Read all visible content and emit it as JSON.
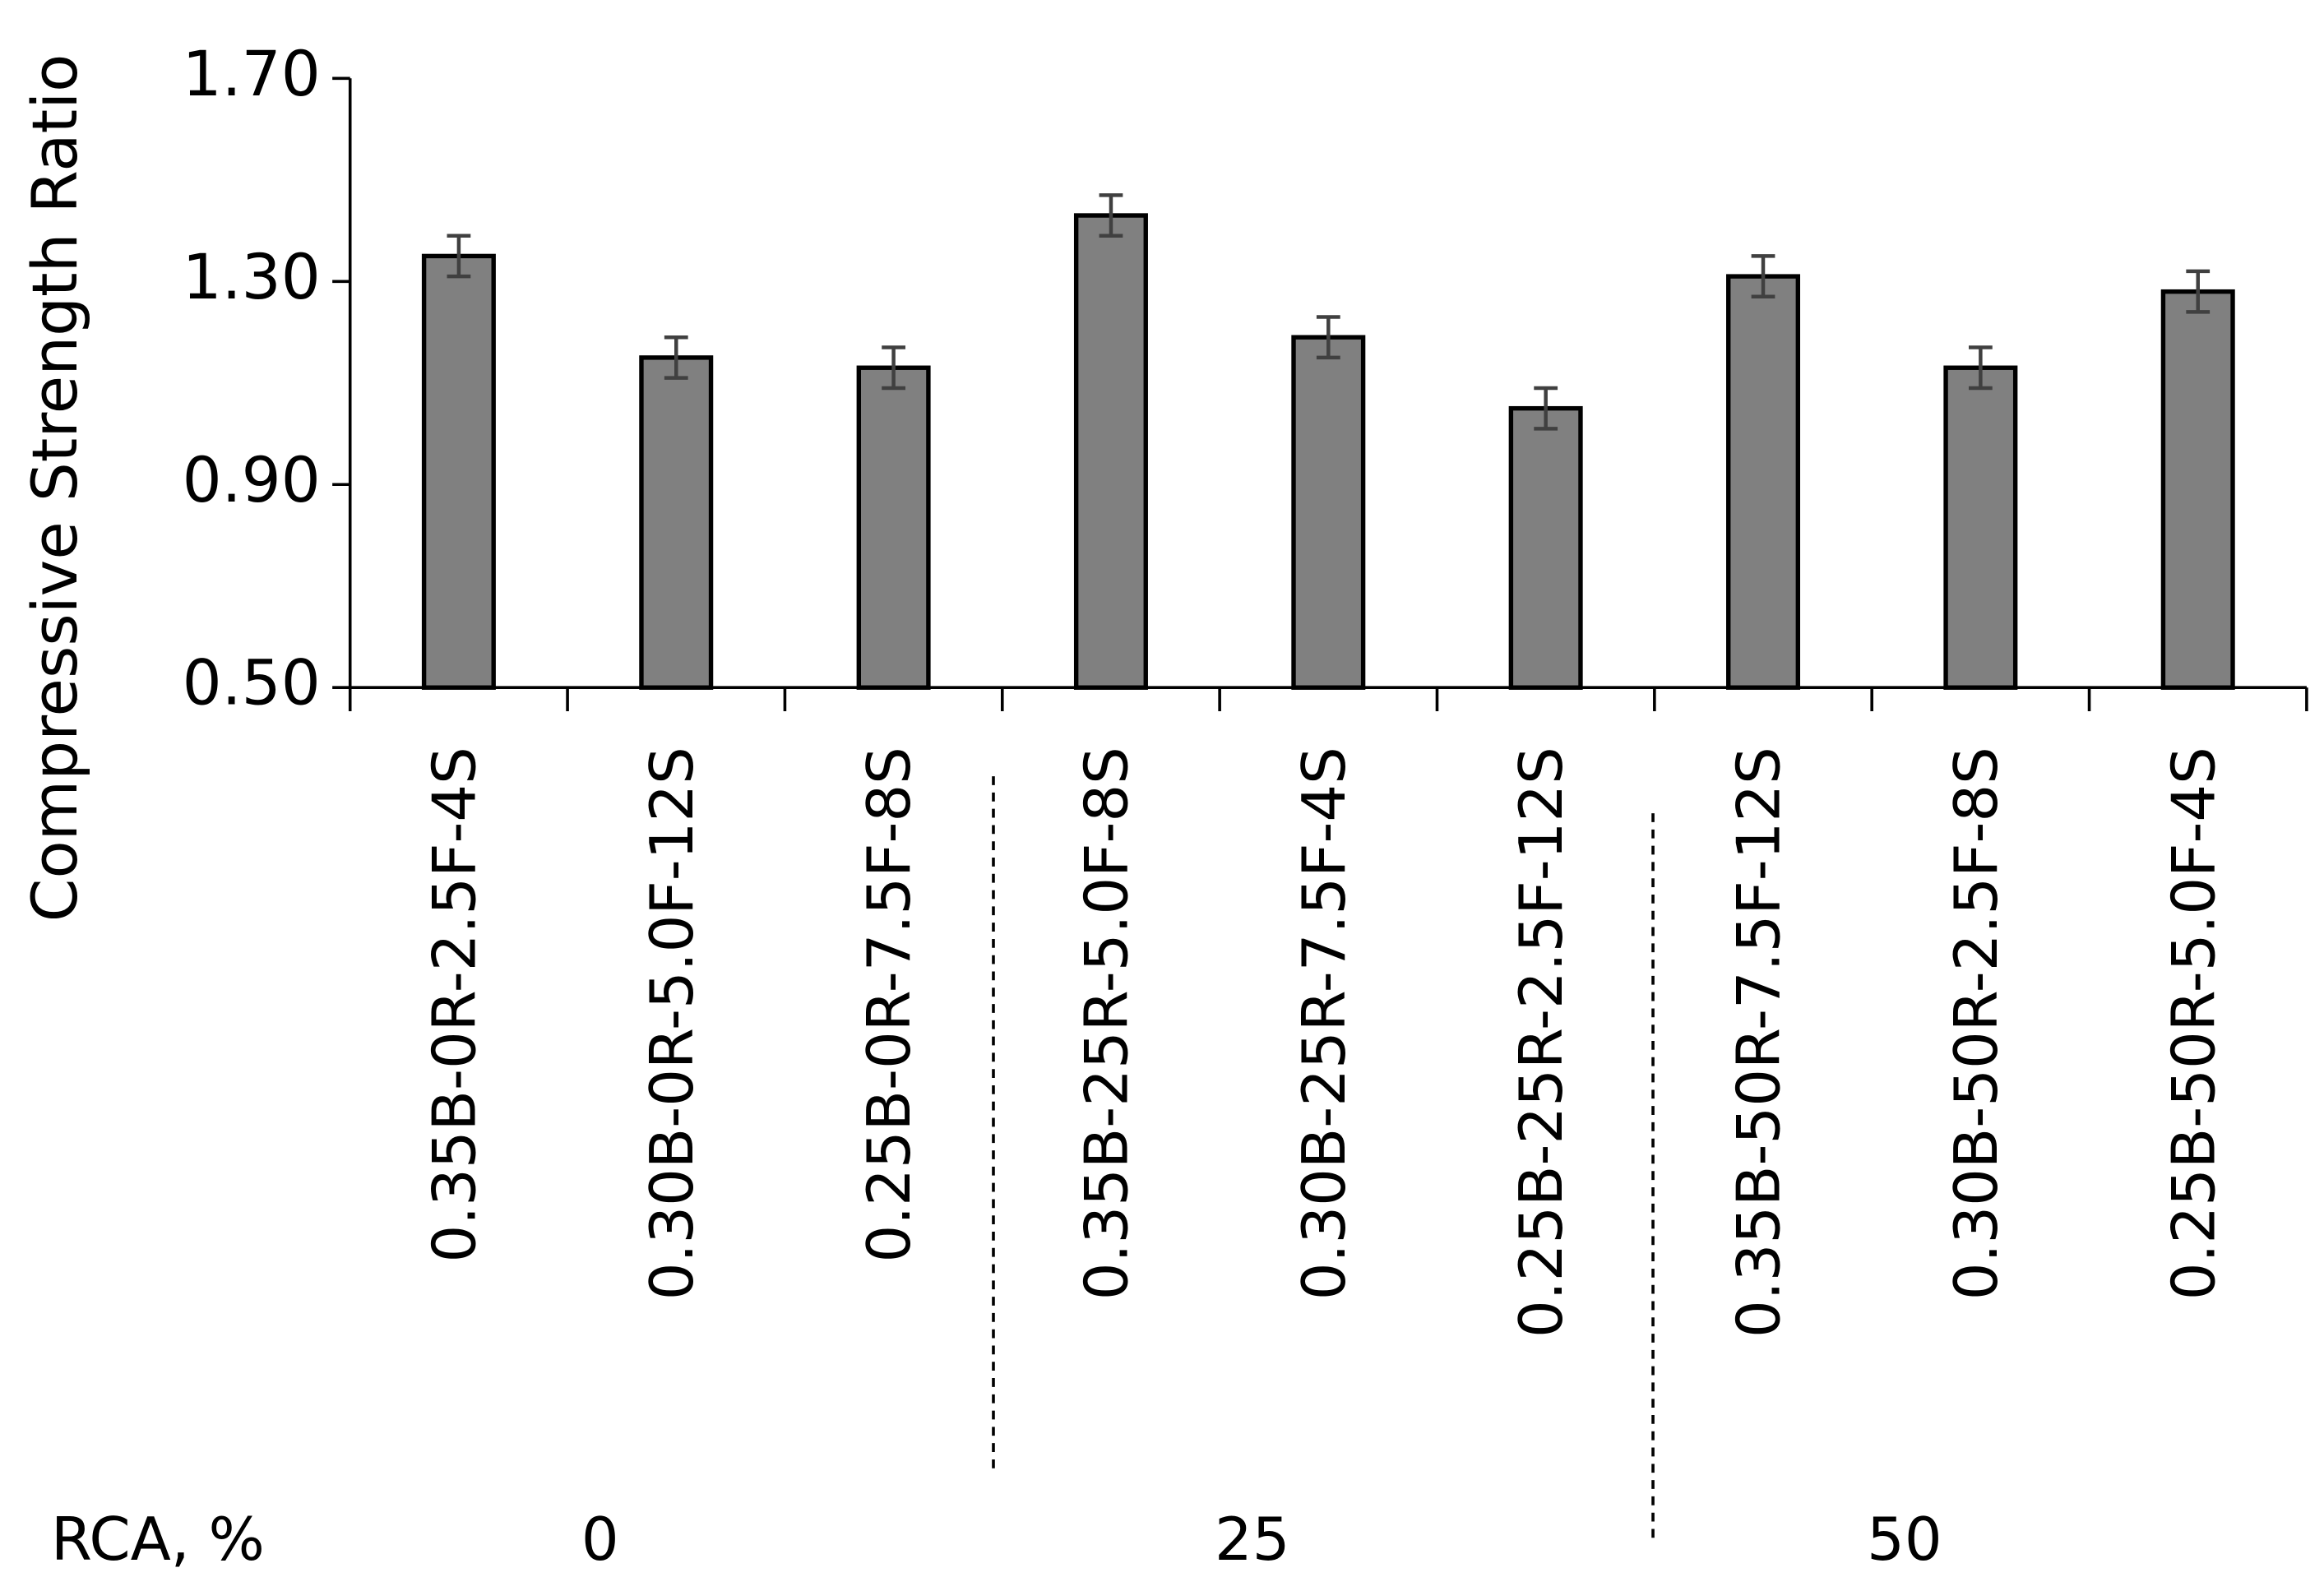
{
  "chart_data": {
    "type": "bar",
    "y_axis_label": "Compressive Strength Ratio",
    "categories": [
      "0.35B-0R-2.5F-4S",
      "0.30B-0R-5.0F-12S",
      "0.25B-0R-7.5F-8S",
      "0.35B-25R-5.0F-8S",
      "0.30B-25R-7.5F-4S",
      "0.25B-25R-2.5F-12S",
      "0.35B-50R-7.5F-12S",
      "0.30B-50R-2.5F-8S",
      "0.25B-50R-5.0F-4S"
    ],
    "values": [
      1.35,
      1.15,
      1.13,
      1.43,
      1.19,
      1.05,
      1.31,
      1.13,
      1.28
    ],
    "errors": [
      0.04,
      0.04,
      0.04,
      0.04,
      0.04,
      0.04,
      0.04,
      0.04,
      0.04
    ],
    "color": "#808080",
    "group_axis_label": "RCA, %",
    "groups": [
      "0",
      "25",
      "50"
    ],
    "ylim": [
      0.5,
      1.7
    ],
    "yticks": [
      {
        "value": 0.5,
        "label": "0.50"
      },
      {
        "value": 0.9,
        "label": "0.90"
      },
      {
        "value": 1.3,
        "label": "1.30"
      },
      {
        "value": 1.7,
        "label": "1.70"
      }
    ]
  }
}
